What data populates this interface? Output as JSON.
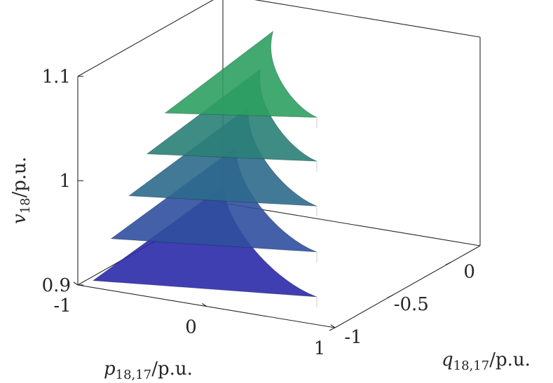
{
  "chart_data": {
    "type": "surface3d",
    "title": "",
    "x_axis": {
      "label": {
        "sym": "p",
        "sub": "18,17",
        "unit": "/p.u."
      },
      "range": [
        -1,
        1
      ],
      "ticks": [
        {
          "value": -1,
          "label": "-1"
        },
        {
          "value": 0,
          "label": "0"
        },
        {
          "value": 1,
          "label": "1"
        }
      ]
    },
    "y_axis": {
      "label": {
        "sym": "q",
        "sub": "18,17",
        "unit": "/p.u."
      },
      "range": [
        -1,
        0.25
      ],
      "ticks": [
        {
          "value": -1,
          "label": "-1"
        },
        {
          "value": -0.5,
          "label": "-0.5"
        },
        {
          "value": 0,
          "label": "0"
        }
      ]
    },
    "z_axis": {
      "label": {
        "sym": "v",
        "sub": "18",
        "unit": "/p.u."
      },
      "range": [
        0.9,
        1.1
      ],
      "ticks": [
        {
          "value": 0.9,
          "label": "0.9"
        },
        {
          "value": 1.0,
          "label": "1"
        },
        {
          "value": 1.1,
          "label": "1.1"
        }
      ]
    },
    "series": [
      {
        "z": 0.925,
        "color": "#2a2aa8"
      },
      {
        "z": 0.968,
        "color": "#2f4f9e"
      },
      {
        "z": 1.012,
        "color": "#2d6a8c"
      },
      {
        "z": 1.055,
        "color": "#2a8078"
      },
      {
        "z": 1.097,
        "color": "#2ea060"
      }
    ]
  }
}
